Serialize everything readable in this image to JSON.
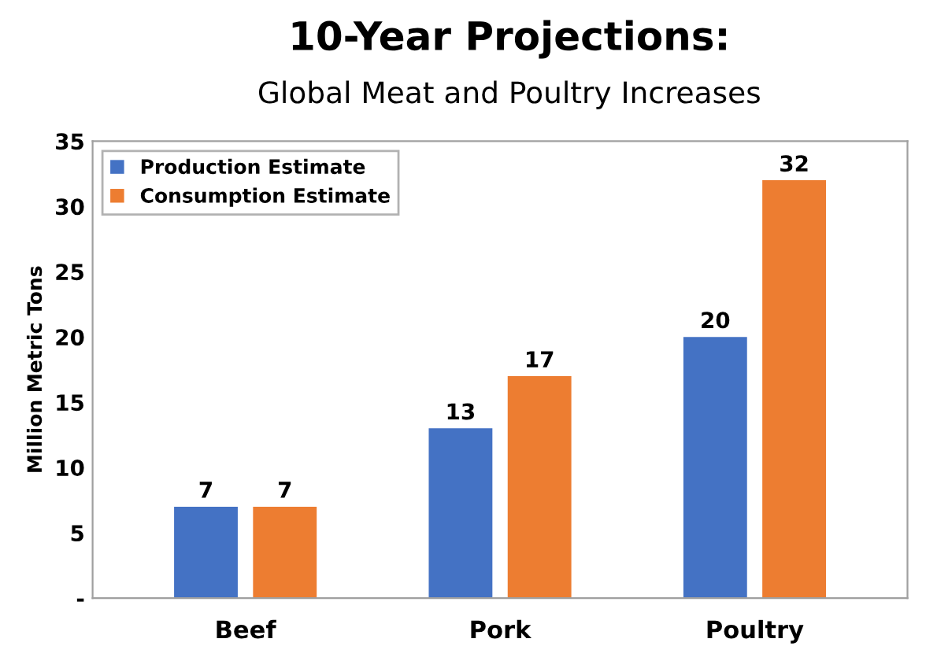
{
  "chart_data": {
    "type": "bar",
    "title": "10-Year Projections:",
    "subtitle": "Global Meat and Poultry Increases",
    "ylabel": "Million Metric Tons",
    "categories": [
      "Beef",
      "Pork",
      "Poultry"
    ],
    "series": [
      {
        "name": "Production Estimate",
        "color": "#4472c4",
        "values": [
          7,
          13,
          20
        ]
      },
      {
        "name": "Consumption Estimate",
        "color": "#ed7d31",
        "values": [
          7,
          17,
          32
        ]
      }
    ],
    "ylim": [
      0,
      35
    ],
    "yticks": [
      {
        "value": 0,
        "label": "-"
      },
      5,
      10,
      15,
      20,
      25,
      30,
      35
    ],
    "data_labels": true,
    "legend": "top left",
    "grid": false
  }
}
